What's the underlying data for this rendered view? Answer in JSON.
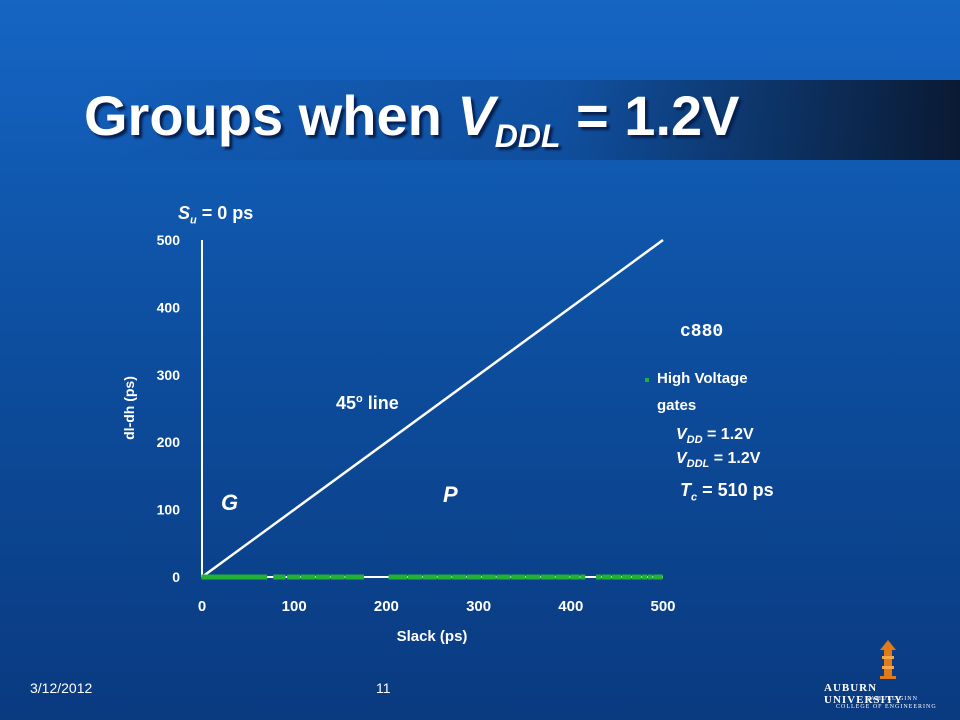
{
  "slide": {
    "title_main": "Groups when ",
    "title_v": "V",
    "title_sub": "DDL",
    "title_rest": " = 1.2V",
    "date": "3/12/2012",
    "page_number": "11",
    "university": "AUBURN UNIVERSITY",
    "college_line1": "SAMUEL GINN",
    "college_line2": "COLLEGE OF ENGINEERING"
  },
  "annotations": {
    "su_s": "S",
    "su_sub": "u",
    "su_rest": " = 0 ps",
    "circuit": "c880",
    "line_label": "45",
    "line_label_sup": "o",
    "line_label_rest": " line",
    "region_g": "G",
    "region_p": "P",
    "vdd_v": "V",
    "vdd_sub": "DD",
    "vdd_rest": " = 1.2V",
    "vddl_v": "V",
    "vddl_sub": "DDL",
    "vddl_rest": " = 1.2V",
    "tc_t": "T",
    "tc_sub": "c",
    "tc_rest": " = 510 ps"
  },
  "colors": {
    "background": "#0d4fa0",
    "data_green": "#22b035",
    "line": "#ffffff"
  },
  "chart_data": {
    "type": "scatter",
    "xlabel": "Slack (ps)",
    "ylabel": "dl-dh (ps)",
    "xlim": [
      0,
      500
    ],
    "ylim": [
      0,
      500
    ],
    "xticks": [
      "0",
      "100",
      "200",
      "300",
      "400",
      "500"
    ],
    "yticks": [
      "0",
      "100",
      "200",
      "300",
      "400",
      "500"
    ],
    "grid": false,
    "legend_position": "right",
    "series": [
      {
        "name": "High Voltage gates",
        "name_line1": "High Voltage",
        "name_line2": "gates",
        "points": [
          [
            2,
            0
          ],
          [
            5,
            0
          ],
          [
            9,
            0
          ],
          [
            13,
            0
          ],
          [
            18,
            0
          ],
          [
            22,
            0
          ],
          [
            27,
            0
          ],
          [
            31,
            0
          ],
          [
            36,
            0
          ],
          [
            40,
            0
          ],
          [
            45,
            0
          ],
          [
            49,
            0
          ],
          [
            54,
            0
          ],
          [
            58,
            0
          ],
          [
            63,
            0
          ],
          [
            68,
            0
          ],
          [
            80,
            0
          ],
          [
            84,
            0
          ],
          [
            88,
            0
          ],
          [
            95,
            0
          ],
          [
            100,
            0
          ],
          [
            104,
            0
          ],
          [
            110,
            0
          ],
          [
            115,
            0
          ],
          [
            120,
            0
          ],
          [
            126,
            0
          ],
          [
            131,
            0
          ],
          [
            136,
            0
          ],
          [
            142,
            0
          ],
          [
            147,
            0
          ],
          [
            152,
            0
          ],
          [
            158,
            0
          ],
          [
            163,
            0
          ],
          [
            168,
            0
          ],
          [
            173,
            0
          ],
          [
            205,
            0
          ],
          [
            210,
            0
          ],
          [
            215,
            0
          ],
          [
            220,
            0
          ],
          [
            226,
            0
          ],
          [
            231,
            0
          ],
          [
            236,
            0
          ],
          [
            242,
            0
          ],
          [
            247,
            0
          ],
          [
            252,
            0
          ],
          [
            258,
            0
          ],
          [
            263,
            0
          ],
          [
            268,
            0
          ],
          [
            274,
            0
          ],
          [
            279,
            0
          ],
          [
            284,
            0
          ],
          [
            290,
            0
          ],
          [
            295,
            0
          ],
          [
            300,
            0
          ],
          [
            306,
            0
          ],
          [
            311,
            0
          ],
          [
            316,
            0
          ],
          [
            322,
            0
          ],
          [
            327,
            0
          ],
          [
            332,
            0
          ],
          [
            338,
            0
          ],
          [
            343,
            0
          ],
          [
            348,
            0
          ],
          [
            354,
            0
          ],
          [
            359,
            0
          ],
          [
            364,
            0
          ],
          [
            370,
            0
          ],
          [
            375,
            0
          ],
          [
            380,
            0
          ],
          [
            386,
            0
          ],
          [
            391,
            0
          ],
          [
            396,
            0
          ],
          [
            402,
            0
          ],
          [
            407,
            0
          ],
          [
            413,
            0
          ],
          [
            430,
            0
          ],
          [
            436,
            0
          ],
          [
            441,
            0
          ],
          [
            447,
            0
          ],
          [
            452,
            0
          ],
          [
            458,
            0
          ],
          [
            463,
            0
          ],
          [
            469,
            0
          ],
          [
            474,
            0
          ],
          [
            480,
            0
          ],
          [
            486,
            0
          ],
          [
            492,
            0
          ],
          [
            497,
            0
          ]
        ]
      }
    ],
    "reference_line": {
      "points": [
        [
          0,
          0
        ],
        [
          500,
          500
        ]
      ]
    }
  }
}
